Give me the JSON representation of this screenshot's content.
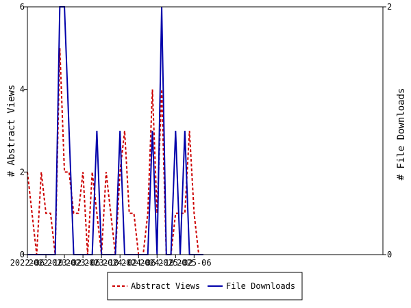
{
  "chart_data": {
    "type": "line",
    "x": [
      "2022-06",
      "2022-07",
      "2022-08",
      "2022-09",
      "2022-10",
      "2022-11",
      "2022-12",
      "2023-01",
      "2023-02",
      "2023-03",
      "2023-04",
      "2023-05",
      "2023-06",
      "2023-07",
      "2023-08",
      "2023-09",
      "2023-10",
      "2023-11",
      "2023-12",
      "2024-01",
      "2024-02",
      "2024-03",
      "2024-04",
      "2024-05",
      "2024-06",
      "2024-07",
      "2024-08",
      "2024-09",
      "2024-10",
      "2024-11",
      "2024-12",
      "2025-01",
      "2025-02",
      "2025-03",
      "2025-04",
      "2025-05",
      "2025-06",
      "2025-07",
      "2025-08"
    ],
    "x_ticks": [
      "2022-06",
      "2022-10",
      "2023-02",
      "2023-06",
      "2023-10",
      "2024-02",
      "2024-06",
      "2024-10",
      "2025-02",
      "2025-06"
    ],
    "series": [
      {
        "name": "Abstract Views",
        "axis": "left",
        "color": "#cc0000",
        "style": "dashed",
        "values": [
          2,
          1,
          0,
          2,
          1,
          1,
          0,
          5,
          2,
          2,
          1,
          1,
          2,
          0,
          2,
          1,
          0,
          2,
          1,
          0,
          2,
          3,
          1,
          1,
          0,
          0,
          1,
          4,
          1,
          4,
          0,
          0,
          1,
          1,
          1,
          3,
          1,
          0,
          0
        ]
      },
      {
        "name": "File Downloads",
        "axis": "right",
        "color": "#0000aa",
        "style": "solid",
        "values": [
          0,
          0,
          0,
          0,
          0,
          0,
          0,
          2,
          2,
          1,
          0,
          0,
          0,
          0,
          0,
          1,
          0,
          0,
          0,
          0,
          1,
          0,
          0,
          0,
          0,
          0,
          0,
          1,
          0,
          2,
          0,
          0,
          1,
          0,
          1,
          0,
          0,
          0,
          0
        ]
      }
    ],
    "y_left": {
      "label": "# Abstract Views",
      "lim": [
        0,
        6
      ],
      "ticks": [
        "0",
        "2",
        "4",
        "6"
      ]
    },
    "y_right": {
      "label": "# File Downloads",
      "lim": [
        0,
        2
      ],
      "ticks": [
        "0",
        "2"
      ]
    },
    "grid": false,
    "legend": {
      "placement": "bottom-center",
      "entries": [
        "Abstract Views",
        "File Downloads"
      ]
    }
  }
}
